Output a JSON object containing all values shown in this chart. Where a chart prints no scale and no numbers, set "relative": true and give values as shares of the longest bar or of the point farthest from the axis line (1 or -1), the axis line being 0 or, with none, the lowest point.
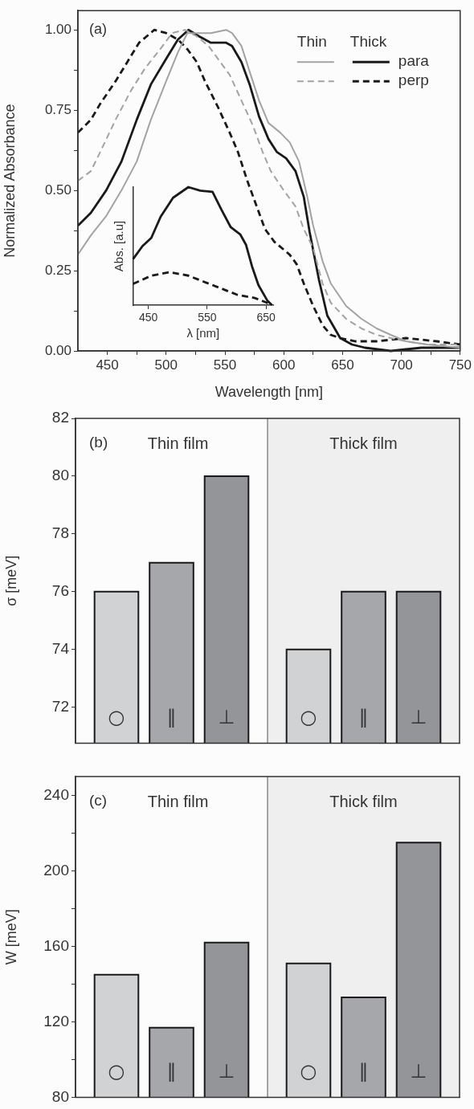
{
  "chart_data": [
    {
      "type": "line",
      "xlabel": "Wavelength [nm]",
      "ylabel": "Normalized Absorbance",
      "annotations": [
        "(a)",
        "Thin",
        "Thick"
      ],
      "legend": "top right",
      "marker": "none",
      "grid": false,
      "xlim": [
        425,
        750
      ],
      "xticks": [
        450,
        {
          "value": 475,
          "label": null
        },
        500,
        {
          "value": 525,
          "label": null
        },
        550,
        {
          "value": 575,
          "label": null
        },
        600,
        {
          "value": 625,
          "label": null
        },
        650,
        {
          "value": 675,
          "label": null
        },
        700,
        {
          "value": 725,
          "label": null
        },
        750
      ],
      "ylim": [
        0,
        1.06
      ],
      "yticks": [
        {
          "value": 0,
          "label": "0.00"
        },
        {
          "value": 0.125,
          "label": null
        },
        {
          "value": 0.25,
          "label": "0.25"
        },
        {
          "value": 0.375,
          "label": null
        },
        {
          "value": 0.5,
          "label": "0.50"
        },
        {
          "value": 0.625,
          "label": null
        },
        {
          "value": 0.75,
          "label": "0.75"
        },
        {
          "value": 0.875,
          "label": null
        },
        {
          "value": 1,
          "label": "1.00"
        }
      ],
      "series": [
        {
          "color": "#a3a3a3",
          "line_style": "solid",
          "x": [
            425,
            436,
            449,
            462,
            475,
            487,
            500,
            510,
            518,
            526,
            538,
            551,
            556,
            564,
            571,
            579,
            587,
            597,
            605,
            613,
            620,
            625,
            633,
            640,
            653,
            666,
            679,
            691,
            704,
            722,
            750
          ],
          "values": [
            0.3,
            0.36,
            0.42,
            0.5,
            0.59,
            0.72,
            0.84,
            0.93,
            0.99,
            0.99,
            0.99,
            1.0,
            0.99,
            0.95,
            0.87,
            0.78,
            0.71,
            0.68,
            0.65,
            0.59,
            0.48,
            0.39,
            0.28,
            0.21,
            0.14,
            0.1,
            0.07,
            0.05,
            0.03,
            0.02,
            0.01
          ]
        },
        {
          "color": "#a3a3a3",
          "line_style": "dashed",
          "x": [
            425,
            436,
            444,
            457,
            470,
            482,
            495,
            505,
            516,
            526,
            536,
            546,
            554,
            564,
            574,
            582,
            589,
            600,
            610,
            617,
            625,
            633,
            640,
            653,
            666,
            679,
            691,
            704,
            722,
            750
          ],
          "values": [
            0.53,
            0.56,
            0.62,
            0.72,
            0.81,
            0.88,
            0.94,
            0.99,
            1.0,
            0.98,
            0.95,
            0.9,
            0.86,
            0.78,
            0.7,
            0.62,
            0.56,
            0.5,
            0.45,
            0.38,
            0.32,
            0.21,
            0.15,
            0.1,
            0.07,
            0.05,
            0.04,
            0.03,
            0.02,
            0.02
          ]
        },
        {
          "name": "para",
          "color": "#1a1a1a",
          "line_style": "solid",
          "x": [
            425,
            436,
            449,
            462,
            475,
            487,
            500,
            510,
            519,
            528,
            538,
            551,
            556,
            564,
            571,
            579,
            587,
            594,
            602,
            610,
            617,
            622,
            630,
            637,
            648,
            658,
            669,
            691,
            717,
            750
          ],
          "values": [
            0.39,
            0.43,
            0.5,
            0.59,
            0.72,
            0.83,
            0.91,
            0.97,
            1.0,
            0.98,
            0.96,
            0.96,
            0.95,
            0.9,
            0.83,
            0.73,
            0.66,
            0.62,
            0.6,
            0.56,
            0.48,
            0.37,
            0.22,
            0.11,
            0.04,
            0.02,
            0.01,
            0.0,
            0.01,
            0.01
          ]
        },
        {
          "name": "perp",
          "color": "#1a1a1a",
          "line_style": "dashed",
          "x": [
            425,
            436,
            444,
            457,
            467,
            477,
            490,
            500,
            510,
            518,
            526,
            533,
            544,
            554,
            561,
            569,
            577,
            584,
            592,
            605,
            611,
            617,
            625,
            633,
            640,
            648,
            661,
            679,
            704,
            730,
            750
          ],
          "values": [
            0.68,
            0.72,
            0.77,
            0.84,
            0.9,
            0.96,
            1.0,
            0.99,
            0.97,
            0.94,
            0.9,
            0.84,
            0.76,
            0.68,
            0.62,
            0.53,
            0.45,
            0.38,
            0.34,
            0.3,
            0.27,
            0.21,
            0.14,
            0.08,
            0.05,
            0.04,
            0.03,
            0.03,
            0.04,
            0.03,
            0.02
          ]
        }
      ]
    },
    {
      "type": "line",
      "xlabel": "λ [nm]",
      "ylabel": "Abs. [a.u]",
      "relative": true,
      "marker": "none",
      "grid": false,
      "xlim": [
        424,
        662
      ],
      "xticks": [
        450,
        550,
        650
      ],
      "series": [
        {
          "color": "#1a1a1a",
          "line_style": "solid",
          "x": [
            424,
            440,
            455,
            471,
            492,
            518,
            538,
            559,
            574,
            590,
            606,
            616,
            626,
            637,
            652,
            660
          ],
          "values": [
            0.39,
            0.5,
            0.57,
            0.75,
            0.91,
            1.0,
            0.97,
            0.96,
            0.81,
            0.66,
            0.6,
            0.51,
            0.33,
            0.17,
            0.04,
            0
          ]
        },
        {
          "color": "#1a1a1a",
          "line_style": "dashed",
          "x": [
            424,
            455,
            486,
            518,
            559,
            600,
            631,
            657
          ],
          "values": [
            0.18,
            0.25,
            0.28,
            0.25,
            0.17,
            0.09,
            0.06,
            0.01
          ]
        }
      ]
    },
    {
      "type": "bar",
      "ylabel": "σ [meV]",
      "annotations": [
        "(b)"
      ],
      "grid": false,
      "legend": false,
      "categories": [
        "Thin film",
        "Thick film"
      ],
      "series": [
        {
          "name": "○",
          "color": "#d1d2d4",
          "values": [
            76,
            74
          ]
        },
        {
          "name": "∥",
          "color": "#a6a7aa",
          "values": [
            77,
            76
          ]
        },
        {
          "name": "⊥",
          "color": "#949598",
          "values": [
            80,
            76
          ]
        }
      ],
      "ylim": [
        70.75,
        82
      ],
      "yticks": [
        72,
        74,
        76,
        78,
        80,
        82
      ],
      "bands": [
        {
          "axis": "x",
          "from": "Thick film",
          "to": "Thick film",
          "color": "#efefef"
        }
      ]
    },
    {
      "type": "bar",
      "ylabel": "W [meV]",
      "annotations": [
        "(c)"
      ],
      "grid": false,
      "legend": false,
      "categories": [
        "Thin film",
        "Thick film"
      ],
      "series": [
        {
          "name": "○",
          "color": "#d1d2d4",
          "values": [
            145,
            151
          ]
        },
        {
          "name": "∥",
          "color": "#a6a7aa",
          "values": [
            117,
            133
          ]
        },
        {
          "name": "⊥",
          "color": "#949598",
          "values": [
            162,
            215
          ]
        }
      ],
      "ylim": [
        80,
        250
      ],
      "yticks": [
        80,
        {
          "value": 100,
          "label": null
        },
        120,
        {
          "value": 140,
          "label": null
        },
        160,
        {
          "value": 180,
          "label": null
        },
        200,
        {
          "value": 220,
          "label": null
        },
        240
      ],
      "bands": [
        {
          "axis": "x",
          "from": "Thick film",
          "to": "Thick film",
          "color": "#efefef"
        }
      ]
    }
  ]
}
